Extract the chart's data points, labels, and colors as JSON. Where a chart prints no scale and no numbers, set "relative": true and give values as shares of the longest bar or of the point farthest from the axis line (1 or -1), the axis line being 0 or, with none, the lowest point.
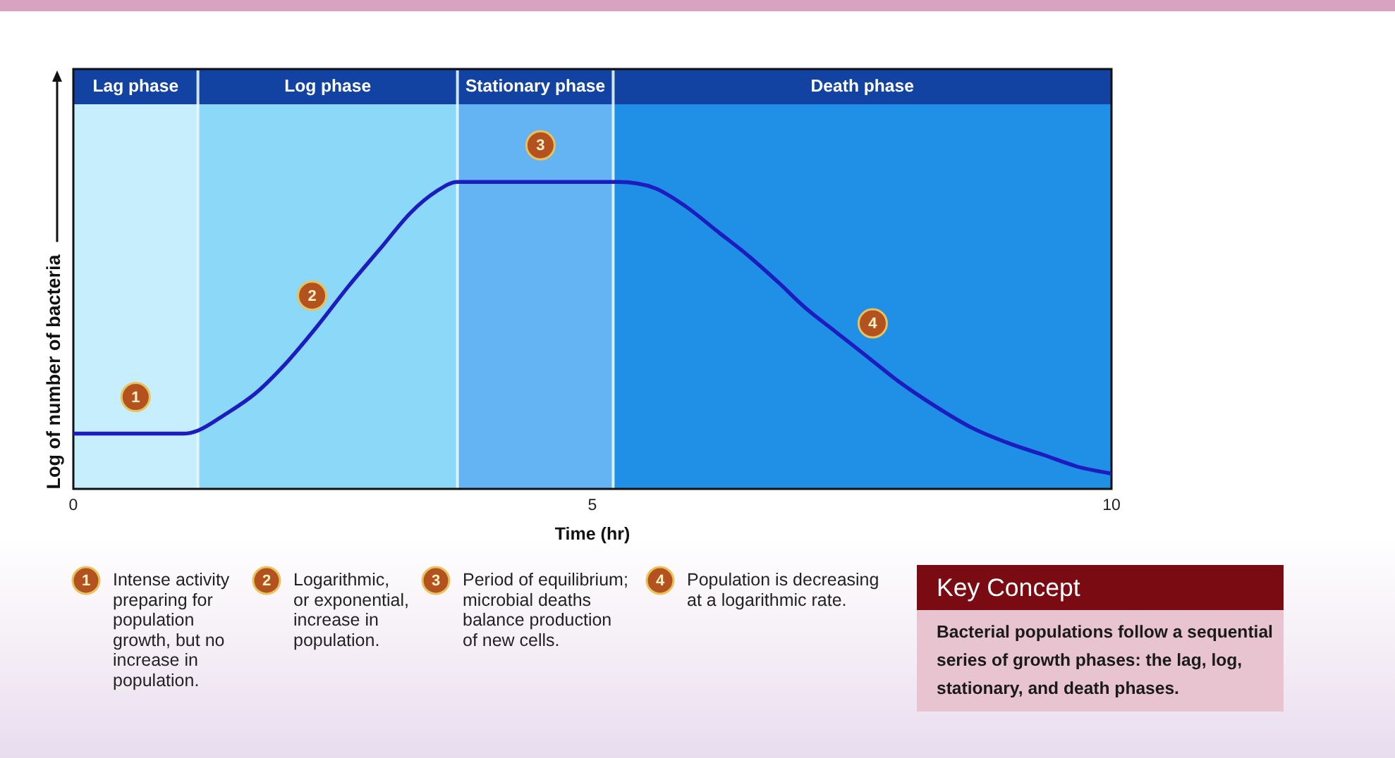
{
  "chart_data": {
    "type": "line",
    "xlabel": "Time (hr)",
    "ylabel": "Log of number of bacteria",
    "relative": true,
    "x": [
      0,
      1.05,
      1.2,
      1.45,
      1.75,
      2.05,
      2.35,
      2.65,
      2.95,
      3.25,
      3.5,
      3.7,
      5.25,
      5.6,
      5.9,
      6.2,
      6.5,
      6.8,
      7.05,
      7.35,
      7.65,
      7.95,
      8.3,
      8.65,
      9,
      9.35,
      9.7,
      10
    ],
    "series": [
      {
        "color": "#1d1dbf",
        "values": [
          0.18,
          0.18,
          0.19,
          0.24,
          0.31,
          0.41,
          0.53,
          0.66,
          0.78,
          0.9,
          0.97,
          1,
          1,
          0.98,
          0.92,
          0.84,
          0.76,
          0.67,
          0.59,
          0.51,
          0.43,
          0.35,
          0.27,
          0.2,
          0.15,
          0.11,
          0.07,
          0.05
        ]
      }
    ],
    "xlim": [
      0,
      10
    ],
    "xticks": [
      0,
      5,
      10
    ],
    "bands": [
      {
        "axis": "x",
        "from": 0,
        "to": 1.2,
        "label": "Lag phase",
        "color": "#c6eefc"
      },
      {
        "axis": "x",
        "from": 1.2,
        "to": 3.7,
        "label": "Log phase",
        "color": "#8bd8f8"
      },
      {
        "axis": "x",
        "from": 3.7,
        "to": 5.2,
        "label": "Stationary phase",
        "color": "#64b4f4"
      },
      {
        "axis": "x",
        "from": 5.2,
        "to": 10,
        "label": "Death phase",
        "color": "#2090e6"
      }
    ],
    "annotations": [
      {
        "text": "1",
        "x": 0.6,
        "y": 0.18
      },
      {
        "text": "2",
        "x": 2.3,
        "y": 0.51
      },
      {
        "text": "3",
        "x": 4.5,
        "y": 1
      },
      {
        "text": "4",
        "x": 7.7,
        "y": 0.42
      },
      "Intense activity\npreparing for\npopulation\ngrowth, but no\nincrease in\npopulation.",
      "Logarithmic,\nor exponential,\nincrease in\npopulation.",
      "Period of equilibrium;\nmicrobial deaths\nbalance production\nof new cells.",
      "Population is decreasing\nat a logarithmic rate.",
      "Key Concept",
      "Bacterial populations follow a sequential\nseries of growth phases: the lag, log,\nstationary, and death phases."
    ]
  }
}
